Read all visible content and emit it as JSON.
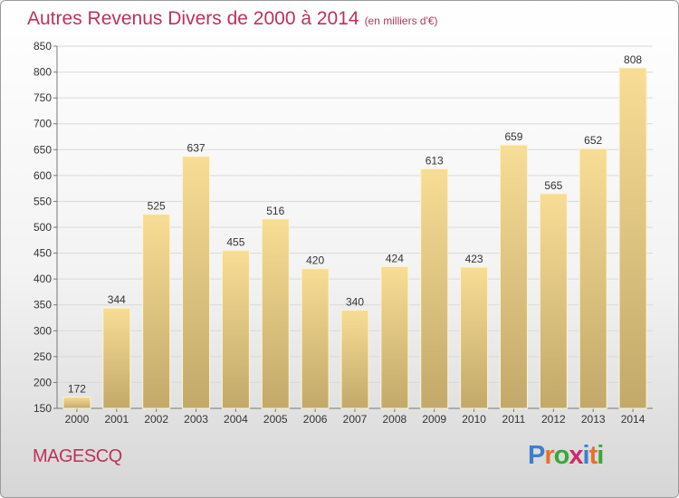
{
  "header": {
    "title": "Autres Revenus Divers de 2000 à 2014",
    "unit": "(en milliers d'€)"
  },
  "commune": "MAGESCQ",
  "logo": {
    "letters": [
      "P",
      "r",
      "o",
      "x",
      "i",
      "t",
      "i"
    ],
    "colors": [
      "#3a7fd0",
      "#e8702a",
      "#3aa83a",
      "#d02a6a",
      "#3a7fd0",
      "#e8702a",
      "#3aa83a"
    ]
  },
  "chart_data": {
    "type": "bar",
    "title": "Autres Revenus Divers de 2000 à 2014",
    "categories": [
      "2000",
      "2001",
      "2002",
      "2003",
      "2004",
      "2005",
      "2006",
      "2007",
      "2008",
      "2009",
      "2010",
      "2011",
      "2012",
      "2013",
      "2014"
    ],
    "values": [
      172,
      344,
      525,
      637,
      455,
      516,
      420,
      340,
      424,
      613,
      423,
      659,
      565,
      652,
      808
    ],
    "ylim": [
      150,
      850
    ],
    "yticks": [
      150,
      200,
      250,
      300,
      350,
      400,
      450,
      500,
      550,
      600,
      650,
      700,
      750,
      800,
      850
    ],
    "grid": true,
    "colors": {
      "bar_top": "#f7dd95",
      "bar_bottom": "#c2a96a",
      "accent": "#c0305a"
    }
  }
}
